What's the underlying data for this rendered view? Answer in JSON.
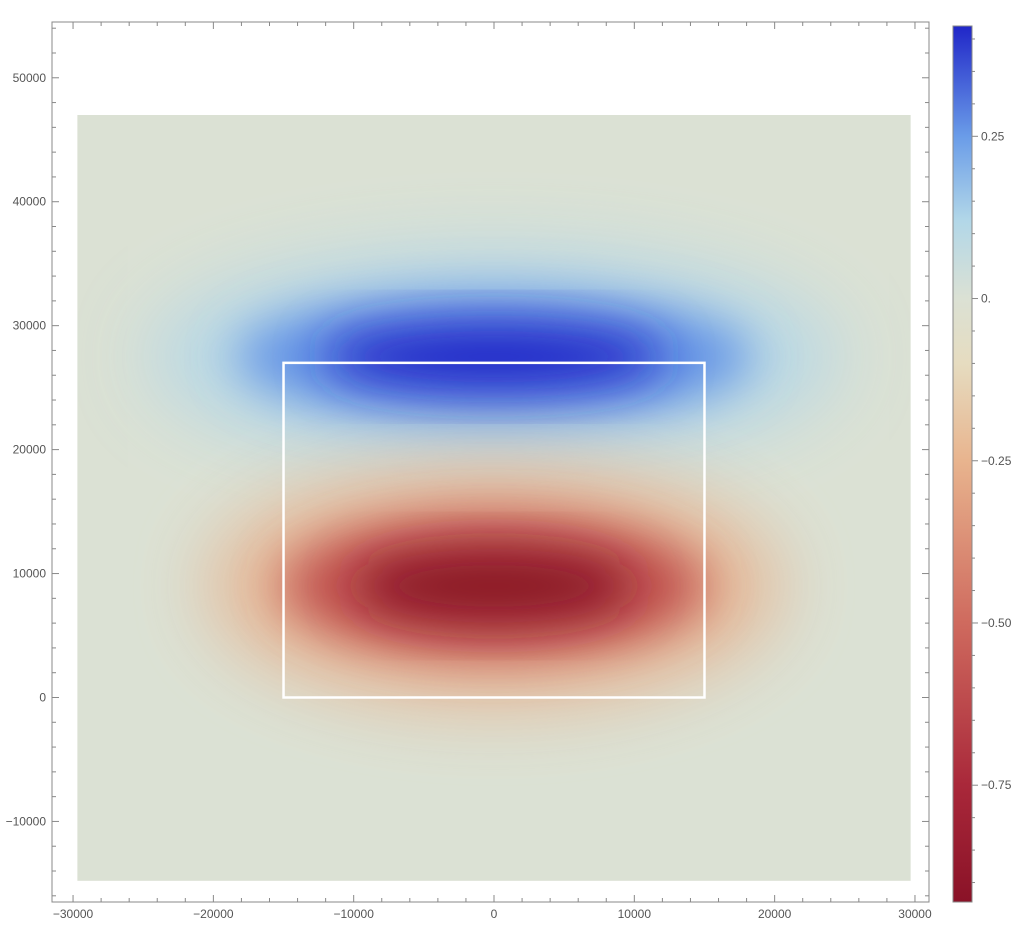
{
  "chart_data": {
    "type": "heatmap",
    "title": "",
    "xlabel": "",
    "ylabel": "",
    "xlim": [
      -31500,
      31000
    ],
    "ylim": [
      -16500,
      54500
    ],
    "data_extent": {
      "x": [
        -29700,
        29700
      ],
      "y": [
        -14800,
        47000
      ]
    },
    "x_ticks": [
      {
        "value": -30000,
        "label": "−30000"
      },
      {
        "value": -20000,
        "label": "−20000"
      },
      {
        "value": -10000,
        "label": "−10000"
      },
      {
        "value": 0,
        "label": "0"
      },
      {
        "value": 10000,
        "label": "10000"
      },
      {
        "value": 20000,
        "label": "20000"
      },
      {
        "value": 30000,
        "label": "30000"
      }
    ],
    "y_ticks": [
      {
        "value": -10000,
        "label": "−10000"
      },
      {
        "value": 0,
        "label": "0"
      },
      {
        "value": 10000,
        "label": "10000"
      },
      {
        "value": 20000,
        "label": "20000"
      },
      {
        "value": 30000,
        "label": "30000"
      },
      {
        "value": 40000,
        "label": "40000"
      },
      {
        "value": 50000,
        "label": "50000"
      }
    ],
    "colorbar": {
      "range": [
        -0.93,
        0.42
      ],
      "ticks": [
        {
          "value": 0.25,
          "label": "0.25"
        },
        {
          "value": 0,
          "label": "0."
        },
        {
          "value": -0.25,
          "label": "−0.25"
        },
        {
          "value": -0.5,
          "label": "−0.50"
        },
        {
          "value": -0.75,
          "label": "−0.75"
        }
      ],
      "stops": [
        {
          "value": -0.93,
          "color": "#8a1227"
        },
        {
          "value": -0.75,
          "color": "#a9283a"
        },
        {
          "value": -0.5,
          "color": "#cf6a5e"
        },
        {
          "value": -0.25,
          "color": "#e8b48e"
        },
        {
          "value": -0.1,
          "color": "#e6dcc0"
        },
        {
          "value": 0,
          "color": "#dbe1d4"
        },
        {
          "value": 0.12,
          "color": "#b2d7e8"
        },
        {
          "value": 0.25,
          "color": "#6a9ce8"
        },
        {
          "value": 0.42,
          "color": "#2026c8"
        }
      ]
    },
    "blobs": [
      {
        "sign": "positive",
        "peak_value": 0.42,
        "center": [
          0,
          27500
        ],
        "half_width": [
          17000,
          4500
        ]
      },
      {
        "sign": "negative",
        "peak_value": -0.93,
        "center": [
          0,
          9000
        ],
        "half_width": [
          14000,
          5000
        ]
      }
    ],
    "rectangle": {
      "x": [
        -15000,
        15000
      ],
      "y": [
        0,
        27000
      ],
      "color": "#ffffff"
    }
  }
}
